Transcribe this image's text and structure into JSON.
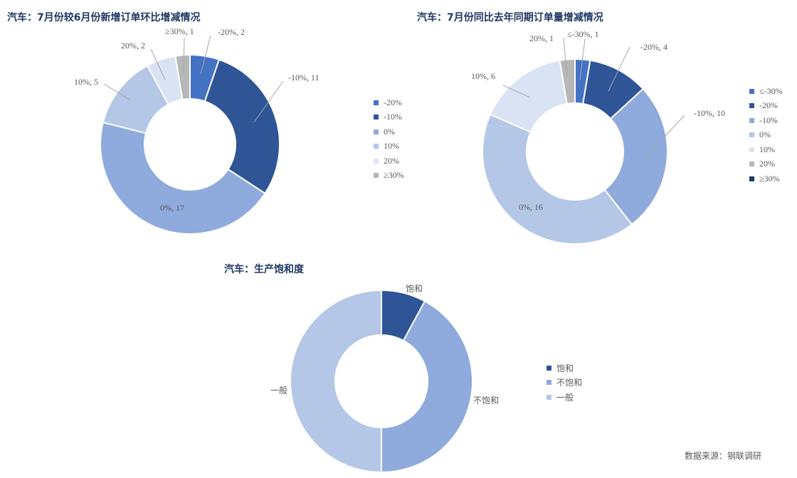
{
  "source_note": "数据来源：钢联调研",
  "chart_data": [
    {
      "type": "pie",
      "title": "汽车：7月份较6月份新增订单环比增减情况",
      "categories": [
        "-20%",
        "-10%",
        "0%",
        "10%",
        "20%",
        "≥30%"
      ],
      "values": [
        2,
        11,
        17,
        5,
        2,
        1
      ],
      "data_labels": [
        "-20%, 2",
        "-10%, 11",
        "0%, 17",
        "10%, 5",
        "20%, 2",
        "≥30%, 1"
      ],
      "colors": [
        "#4472c4",
        "#2f5597",
        "#8faadc",
        "#b4c7e7",
        "#dae3f3",
        "#b7b7b7"
      ],
      "legend": [
        "-20%",
        "-10%",
        "0%",
        "10%",
        "20%",
        "≥30%"
      ],
      "legend_position": "right"
    },
    {
      "type": "pie",
      "title": "汽车：7月份同比去年同期订单量增减情况",
      "categories": [
        "≤-30%",
        "-20%",
        "-10%",
        "0%",
        "10%",
        "20%",
        "≥30%"
      ],
      "values": [
        1,
        4,
        10,
        16,
        6,
        1,
        0
      ],
      "data_labels": [
        "≤-30%, 1",
        "-20%, 4",
        "-10%, 10",
        "0%, 16",
        "10%, 6",
        "20%, 1",
        ""
      ],
      "colors": [
        "#4472c4",
        "#2f5597",
        "#8faadc",
        "#b4c7e7",
        "#dae3f3",
        "#b7b7b7",
        "#203864"
      ],
      "legend": [
        "≤-30%",
        "-20%",
        "-10%",
        "0%",
        "10%",
        "20%",
        "≥30%"
      ],
      "legend_position": "right"
    },
    {
      "type": "pie",
      "title": "汽车：生产饱和度",
      "categories": [
        "饱和",
        "不饱和",
        "一般"
      ],
      "values": [
        3,
        16,
        19
      ],
      "data_labels": [
        "饱和",
        "不饱和",
        "一般"
      ],
      "colors": [
        "#2f5597",
        "#8faadc",
        "#b4c7e7"
      ],
      "legend": [
        "饱和",
        "不饱和",
        "一般"
      ],
      "legend_position": "right"
    }
  ]
}
